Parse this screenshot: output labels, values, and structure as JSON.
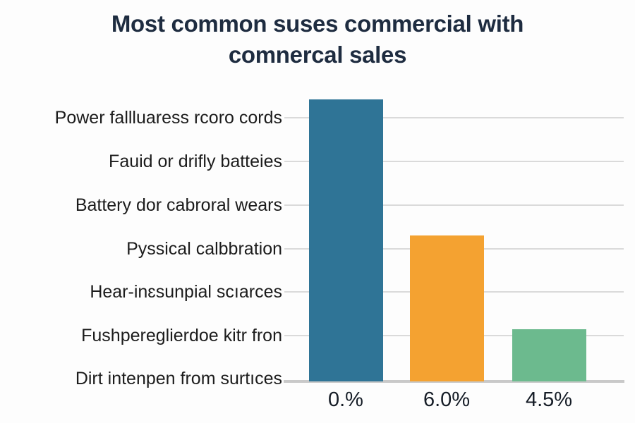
{
  "title": {
    "line1": "Most common suses commercial with",
    "line2": "comnercal sales"
  },
  "colors": {
    "background": "#fdfdfd",
    "title_text": "#1e2c40",
    "label_text": "#1c1c1c",
    "tick_text": "#151c26",
    "gridline": "#dadada",
    "baseline": "#c9c9c9"
  },
  "chart_data": {
    "type": "bar",
    "orientation": "vertical",
    "title": "Most common suses commercial with comnercal sales",
    "row_labels": [
      "Power fallluaress rcoro cords",
      "Fauid or drifly batteies",
      "Battery dor cabroral wears",
      "Pyssical calbbration",
      "Hear-inɛsunpial scıarces",
      "Fushpereglierdoe kitr fron",
      "Dirt intenpen from surtıces"
    ],
    "x_tick_labels": [
      "0.%",
      "6.0%",
      "4.5%"
    ],
    "bars": [
      {
        "x_label": "0.%",
        "value_frac": 0.998,
        "color": "#2f7496"
      },
      {
        "x_label": "6.0%",
        "value_frac": 0.515,
        "color": "#f4a231"
      },
      {
        "x_label": "4.5%",
        "value_frac": 0.184,
        "color": "#6cba8e"
      }
    ],
    "grid": true,
    "legend": false,
    "ylim": [
      0,
      1
    ]
  }
}
